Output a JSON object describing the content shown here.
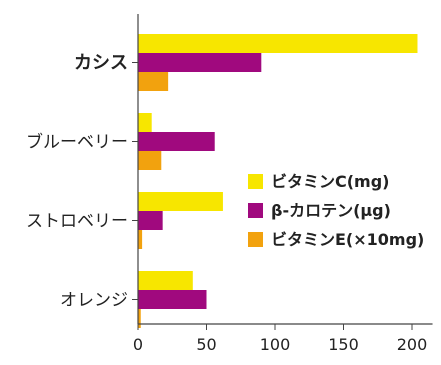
{
  "chart_data": {
    "type": "bar",
    "orientation": "horizontal",
    "categories": [
      "カシス",
      "ブルーベリー",
      "ストロベリー",
      "オレンジ"
    ],
    "emphasized_category": "カシス",
    "series": [
      {
        "name": "ビタミンC(mg)",
        "values": [
          204,
          10,
          62,
          40
        ],
        "color": "#F7E600"
      },
      {
        "name": "β-カロテン(μg)",
        "values": [
          90,
          56,
          18,
          50
        ],
        "color": "#A0097E"
      },
      {
        "name": "ビタミンE(×10mg)",
        "values": [
          22,
          17,
          3,
          2
        ],
        "color": "#F2A20E"
      }
    ],
    "x_ticks": [
      0,
      50,
      100,
      150,
      200
    ],
    "xlim": [
      0,
      215
    ],
    "legend_position": "right",
    "grid": false
  }
}
